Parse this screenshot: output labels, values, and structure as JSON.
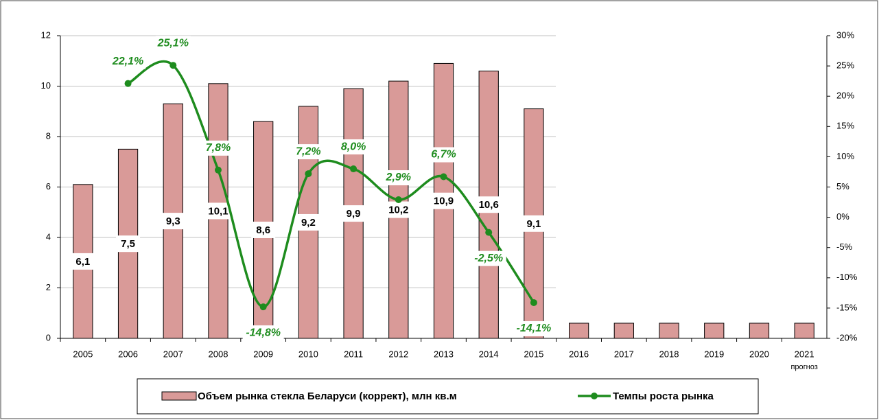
{
  "chart_data": {
    "type": "bar_line",
    "categories": [
      "2005",
      "2006",
      "2007",
      "2008",
      "2009",
      "2010",
      "2011",
      "2012",
      "2013",
      "2014",
      "2015",
      "2016",
      "2017",
      "2018",
      "2019",
      "2020",
      "2021"
    ],
    "x_note": "прогноз",
    "series": [
      {
        "name": "Объем рынка стекла Беларуси (коррект), млн кв.м",
        "color": "#d99a98",
        "type": "bar",
        "values": [
          6.1,
          7.5,
          9.3,
          10.1,
          8.6,
          9.2,
          9.9,
          10.2,
          10.9,
          10.6,
          9.1,
          0.6,
          0.6,
          0.6,
          0.6,
          0.6,
          0.6
        ],
        "value_labels": [
          "6,1",
          "7,5",
          "9,3",
          "10,1",
          "8,6",
          "9,2",
          "9,9",
          "10,2",
          "10,9",
          "10,6",
          "9,1",
          null,
          null,
          null,
          null,
          null,
          null
        ]
      },
      {
        "name": "Темпы роста рынка",
        "color": "#1e8c1e",
        "type": "line",
        "axis": "y2",
        "values": [
          null,
          22.1,
          25.1,
          7.8,
          -14.8,
          7.2,
          8.0,
          2.9,
          6.7,
          -2.5,
          -14.1,
          null,
          null,
          null,
          null,
          null,
          null
        ],
        "value_labels": [
          null,
          "22,1%",
          "25,1%",
          "7,8%",
          "-14,8%",
          "7,2%",
          "8,0%",
          "2,9%",
          "6,7%",
          "-2,5%",
          "-14,1%",
          null,
          null,
          null,
          null,
          null,
          null
        ]
      }
    ],
    "ylim": [
      0,
      12
    ],
    "yticks": [
      0,
      2,
      4,
      6,
      8,
      10,
      12
    ],
    "y2lim": [
      -20,
      30
    ],
    "y2ticks": [
      {
        "value": -20,
        "label": "-20%"
      },
      {
        "value": -15,
        "label": "-15%"
      },
      {
        "value": -10,
        "label": "-10%"
      },
      {
        "value": -5,
        "label": "-5%"
      },
      {
        "value": 0,
        "label": "0%"
      },
      {
        "value": 5,
        "label": "5%"
      },
      {
        "value": 10,
        "label": "10%"
      },
      {
        "value": 15,
        "label": "15%"
      },
      {
        "value": 20,
        "label": "20%"
      },
      {
        "value": 25,
        "label": "25%"
      },
      {
        "value": 30,
        "label": "30%"
      }
    ],
    "grid": true,
    "legend": "bottom"
  }
}
